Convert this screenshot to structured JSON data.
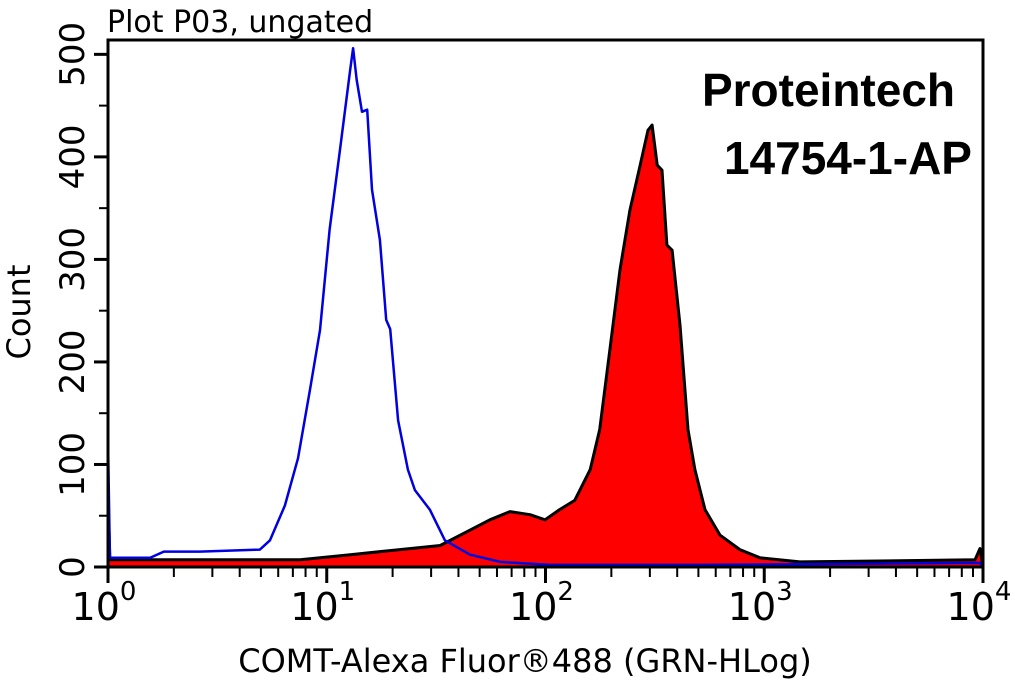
{
  "chart_data": {
    "type": "area",
    "title": "Plot P03, ungated",
    "xlabel": "COMT-Alexa Fluor®488 (GRN-HLog)",
    "ylabel": "Count",
    "x_scale": "log",
    "xlim": [
      1,
      10000
    ],
    "ylim": [
      0,
      514
    ],
    "x_ticks": [
      {
        "base": "10",
        "exp": "0",
        "value": 1
      },
      {
        "base": "10",
        "exp": "1",
        "value": 10
      },
      {
        "base": "10",
        "exp": "2",
        "value": 100
      },
      {
        "base": "10",
        "exp": "3",
        "value": 1000
      },
      {
        "base": "10",
        "exp": "4",
        "value": 10000
      }
    ],
    "y_ticks": [
      "0",
      "100",
      "200",
      "300",
      "400",
      "500"
    ],
    "grid": false,
    "annotations": [
      "Proteintech",
      "14754-1-AP"
    ],
    "series": [
      {
        "role": "control",
        "style": "line",
        "color": "#0000e0",
        "points": [
          [
            1,
            124
          ],
          [
            1.02,
            9
          ],
          [
            1.56,
            9
          ],
          [
            1.8,
            15
          ],
          [
            2.63,
            15
          ],
          [
            4.95,
            17
          ],
          [
            5.5,
            26
          ],
          [
            6.44,
            60
          ],
          [
            7.39,
            106
          ],
          [
            8.38,
            173
          ],
          [
            9.31,
            231
          ],
          [
            10.3,
            329
          ],
          [
            11.5,
            407
          ],
          [
            12.8,
            485
          ],
          [
            13.2,
            506
          ],
          [
            13.7,
            475
          ],
          [
            14.5,
            444
          ],
          [
            15.3,
            446
          ],
          [
            16.1,
            368
          ],
          [
            17.5,
            319
          ],
          [
            18.7,
            241
          ],
          [
            19.5,
            232
          ],
          [
            21.2,
            143
          ],
          [
            23.5,
            95
          ],
          [
            25.3,
            75
          ],
          [
            29.6,
            56
          ],
          [
            34.7,
            26
          ],
          [
            45.2,
            12
          ],
          [
            62,
            5
          ],
          [
            105,
            2
          ],
          [
            508,
            2
          ],
          [
            9690,
            4
          ],
          [
            10000,
            0
          ]
        ]
      },
      {
        "role": "sample",
        "style": "filled",
        "color": "#ff0000",
        "outline": "#000000",
        "points": [
          [
            1,
            70
          ],
          [
            1.02,
            7
          ],
          [
            7.55,
            7
          ],
          [
            12.8,
            12
          ],
          [
            21.6,
            17
          ],
          [
            33,
            21
          ],
          [
            45.2,
            36
          ],
          [
            55.7,
            46
          ],
          [
            68.8,
            54
          ],
          [
            85,
            51
          ],
          [
            99.5,
            46
          ],
          [
            116,
            56
          ],
          [
            136,
            65
          ],
          [
            160,
            95
          ],
          [
            177,
            134
          ],
          [
            197,
            212
          ],
          [
            219,
            290
          ],
          [
            243,
            348
          ],
          [
            271,
            392
          ],
          [
            294,
            426
          ],
          [
            307,
            431
          ],
          [
            324,
            392
          ],
          [
            341,
            387
          ],
          [
            359,
            314
          ],
          [
            379,
            309
          ],
          [
            412,
            236
          ],
          [
            448,
            134
          ],
          [
            482,
            95
          ],
          [
            536,
            56
          ],
          [
            628,
            31
          ],
          [
            774,
            17
          ],
          [
            956,
            9
          ],
          [
            1456,
            5
          ],
          [
            9190,
            7
          ],
          [
            9690,
            18
          ],
          [
            10000,
            0
          ]
        ]
      }
    ]
  }
}
